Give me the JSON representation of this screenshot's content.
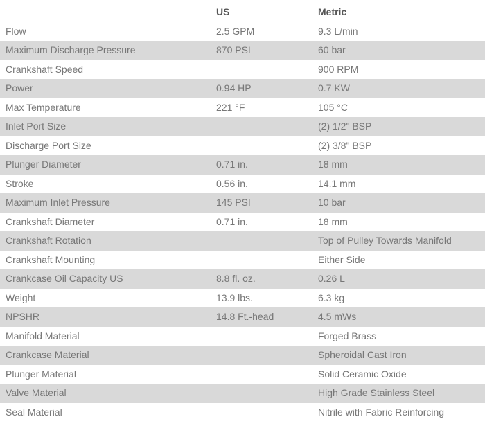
{
  "table": {
    "header": {
      "label": "",
      "us": "US",
      "metric": "Metric"
    },
    "shaded_row_color": "#d9d9d9",
    "text_color": "#777777",
    "header_text_color": "#565656",
    "rows": [
      {
        "label": "Flow",
        "us": "2.5 GPM",
        "metric": "9.3 L/min"
      },
      {
        "label": "Maximum Discharge Pressure",
        "us": "870 PSI",
        "metric": "60 bar"
      },
      {
        "label": "Crankshaft Speed",
        "us": "",
        "metric": "900 RPM"
      },
      {
        "label": "Power",
        "us": "0.94 HP",
        "metric": "0.7 KW"
      },
      {
        "label": "Max Temperature",
        "us": "221 °F",
        "metric": "105 °C"
      },
      {
        "label": "Inlet Port Size",
        "us": "",
        "metric": "(2) 1/2\" BSP"
      },
      {
        "label": "Discharge Port Size",
        "us": "",
        "metric": "(2) 3/8\" BSP"
      },
      {
        "label": "Plunger Diameter",
        "us": "0.71 in.",
        "metric": "18 mm"
      },
      {
        "label": "Stroke",
        "us": "0.56 in.",
        "metric": "14.1 mm"
      },
      {
        "label": "Maximum Inlet Pressure",
        "us": "145 PSI",
        "metric": "10 bar"
      },
      {
        "label": "Crankshaft Diameter",
        "us": "0.71 in.",
        "metric": "18 mm"
      },
      {
        "label": "Crankshaft Rotation",
        "us": "",
        "metric": "Top of Pulley Towards Manifold"
      },
      {
        "label": "Crankshaft Mounting",
        "us": "",
        "metric": "Either Side"
      },
      {
        "label": "Crankcase Oil Capacity US",
        "us": "8.8 fl. oz.",
        "metric": "0.26 L"
      },
      {
        "label": "Weight",
        "us": "13.9 lbs.",
        "metric": "6.3 kg"
      },
      {
        "label": "NPSHR",
        "us": "14.8 Ft.-head",
        "metric": "4.5 mWs"
      },
      {
        "label": "Manifold Material",
        "us": "",
        "metric": "Forged Brass"
      },
      {
        "label": "Crankcase Material",
        "us": "",
        "metric": "Spheroidal Cast Iron"
      },
      {
        "label": "Plunger Material",
        "us": "",
        "metric": "Solid Ceramic Oxide"
      },
      {
        "label": "Valve Material",
        "us": "",
        "metric": "High Grade Stainless Steel"
      },
      {
        "label": "Seal Material",
        "us": "",
        "metric": "Nitrile with Fabric Reinforcing"
      }
    ]
  }
}
